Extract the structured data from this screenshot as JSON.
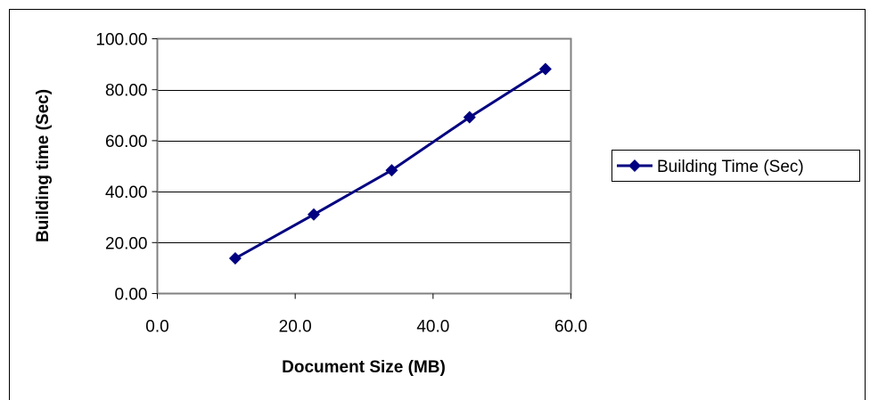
{
  "chart_data": {
    "type": "line",
    "title": "",
    "xlabel": "Document Size (MB)",
    "ylabel": "Building time (Sec)",
    "xlim": [
      0,
      60
    ],
    "ylim": [
      0,
      100
    ],
    "x_ticks": [
      "0.0",
      "20.0",
      "40.0",
      "60.0"
    ],
    "y_ticks": [
      "0.00",
      "20.00",
      "40.00",
      "60.00",
      "80.00",
      "100.00"
    ],
    "x_tick_values": [
      0,
      20,
      40,
      60
    ],
    "y_tick_values": [
      0,
      20,
      40,
      60,
      80,
      100
    ],
    "grid": "horizontal",
    "legend_position": "right",
    "series": [
      {
        "name": "Building Time (Sec)",
        "color": "#000080",
        "marker": "diamond",
        "x": [
          11.3,
          22.7,
          34.0,
          45.3,
          56.3
        ],
        "y": [
          13.8,
          31.0,
          48.4,
          69.2,
          88.1
        ]
      }
    ]
  }
}
